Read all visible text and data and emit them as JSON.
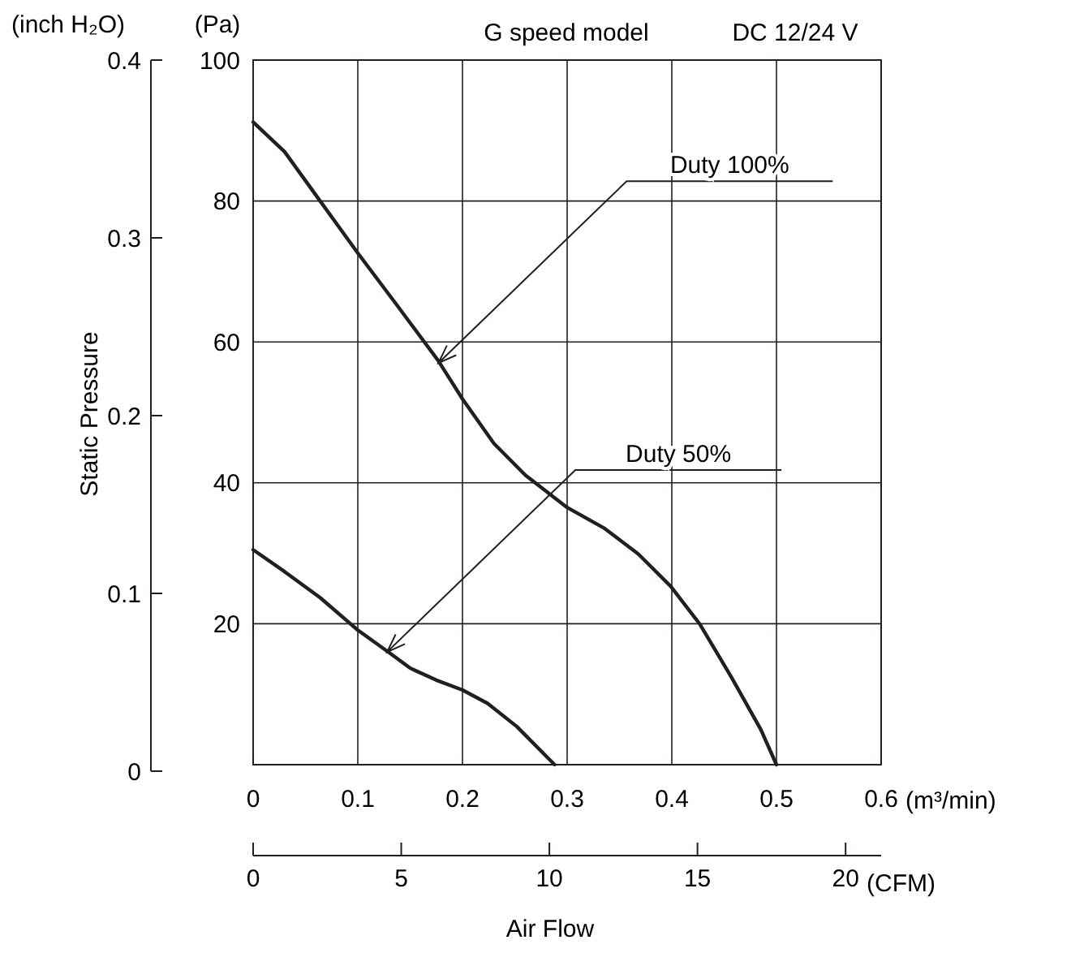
{
  "chart_data": {
    "type": "line",
    "title": "G speed model",
    "subtitle": "DC 12/24 V",
    "xlabel": "Air Flow",
    "y2label": "Static Pressure",
    "annotations": [
      "(inch H₂O)",
      "(Pa)",
      "(m³/min)",
      "(CFM)",
      {
        "text": "Duty 100%",
        "x": 0.177,
        "y": 57
      },
      {
        "text": "Duty 50%",
        "x": 0.128,
        "y": 16
      }
    ],
    "xlim": [
      0,
      0.6
    ],
    "xticks": [
      0,
      0.1,
      0.2,
      0.3,
      0.4,
      0.5,
      0.6
    ],
    "ylim": [
      0,
      100
    ],
    "yticks": [
      20,
      40,
      60,
      80,
      100
    ],
    "y2lim": [
      0,
      0.4
    ],
    "y2ticks": [
      0,
      0.1,
      0.2,
      0.3,
      0.4
    ],
    "x2lim": [
      0,
      21.2
    ],
    "x2ticks": [
      0,
      5,
      10,
      15,
      20
    ],
    "grid": true,
    "line_style": "solid",
    "series": [
      {
        "color": "#231f20",
        "x": [
          0,
          0.03,
          0.064,
          0.1,
          0.136,
          0.177,
          0.2,
          0.23,
          0.26,
          0.3,
          0.335,
          0.368,
          0.399,
          0.427,
          0.457,
          0.485,
          0.5
        ],
        "values": [
          91.2,
          87,
          80,
          72.6,
          65.5,
          57.3,
          51.9,
          45.6,
          41.1,
          36.5,
          33.6,
          29.9,
          25.3,
          19.9,
          12.4,
          5,
          0
        ]
      },
      {
        "color": "#231f20",
        "x": [
          0,
          0.03,
          0.064,
          0.1,
          0.13,
          0.15,
          0.175,
          0.2,
          0.224,
          0.252,
          0.288
        ],
        "values": [
          30.5,
          27.4,
          23.7,
          19.1,
          15.9,
          13.7,
          12,
          10.6,
          8.7,
          5.4,
          0
        ]
      }
    ]
  }
}
